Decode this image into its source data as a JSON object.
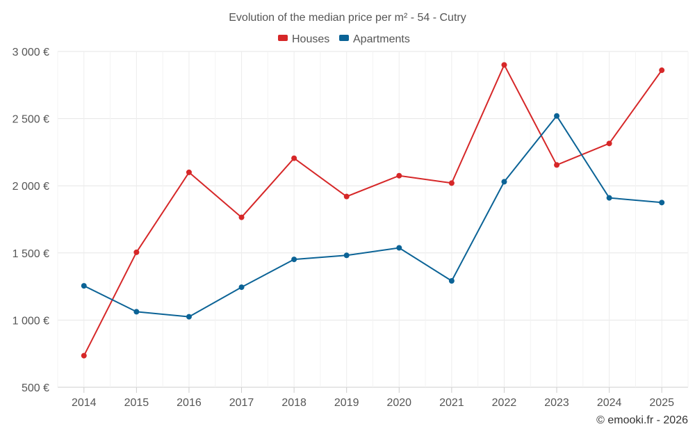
{
  "chart_data": {
    "type": "line",
    "title": "Evolution of the median price per m² - 54 - Cutry",
    "categories": [
      "2014",
      "2015",
      "2016",
      "2017",
      "2018",
      "2019",
      "2020",
      "2021",
      "2022",
      "2023",
      "2024",
      "2025"
    ],
    "series": [
      {
        "name": "Houses",
        "color": "#d62728",
        "values": [
          735,
          1505,
          2100,
          1765,
          2205,
          1920,
          2075,
          2020,
          2900,
          2155,
          2315,
          2860
        ]
      },
      {
        "name": "Apartments",
        "color": "#0b6396",
        "values": [
          1255,
          1062,
          1025,
          1245,
          1452,
          1482,
          1538,
          1292,
          2030,
          2520,
          1910,
          1875
        ]
      }
    ],
    "ylim": [
      500,
      3000
    ],
    "yticks": [
      500,
      1000,
      1500,
      2000,
      2500,
      3000
    ],
    "ytick_labels": [
      "500 €",
      "1 000 €",
      "1 500 €",
      "2 000 €",
      "2 500 €",
      "3 000 €"
    ],
    "xlabel": "",
    "ylabel": "",
    "grid": true,
    "legend_position": "top-center"
  },
  "credit": "© emooki.fr - 2026"
}
